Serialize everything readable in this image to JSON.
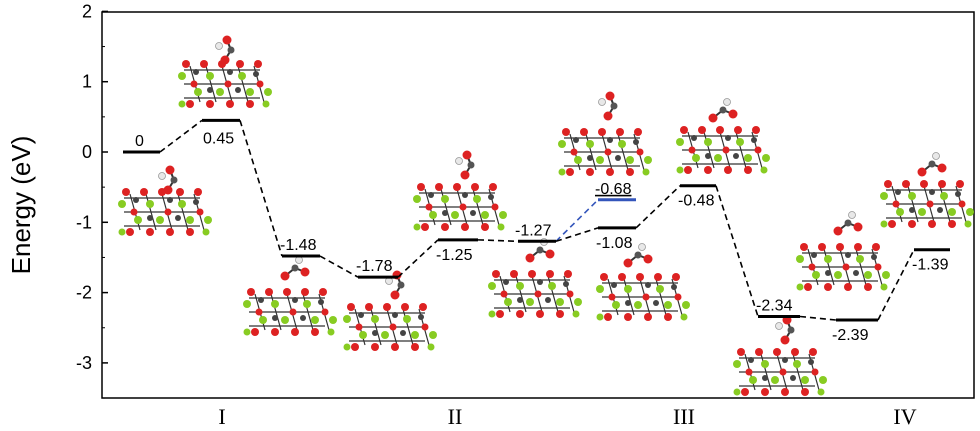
{
  "chart_data": {
    "type": "line",
    "title": "",
    "xlabel": "",
    "ylabel": "Energy (eV)",
    "ylim": [
      -3.55,
      2
    ],
    "yticks": [
      2,
      1,
      0,
      -1,
      -2,
      -3
    ],
    "ytick_labels": [
      "2",
      "1",
      "0",
      "-1",
      "-2",
      "-3"
    ],
    "stage_labels": [
      "I",
      "II",
      "III",
      "IV"
    ],
    "levels": [
      {
        "label": "0",
        "value": 0,
        "color": "#000000"
      },
      {
        "label": "0.45",
        "value": 0.45,
        "color": "#000000"
      },
      {
        "label": "-1.48",
        "value": -1.48,
        "color": "#000000"
      },
      {
        "label": "-1.78",
        "value": -1.78,
        "color": "#000000"
      },
      {
        "label": "-1.25",
        "value": -1.25,
        "color": "#000000"
      },
      {
        "label": "-1.27",
        "value": -1.27,
        "color": "#000000"
      },
      {
        "label": "-0.68",
        "value": -0.68,
        "color": "#3355bb"
      },
      {
        "label": "-1.08",
        "value": -1.08,
        "color": "#000000"
      },
      {
        "label": "-0.48",
        "value": -0.48,
        "color": "#000000"
      },
      {
        "label": "-2.34",
        "value": -2.34,
        "color": "#000000"
      },
      {
        "label": "-2.39",
        "value": -2.39,
        "color": "#000000"
      },
      {
        "label": "-1.39",
        "value": -1.39,
        "color": "#000000"
      }
    ],
    "connections": [
      {
        "from": 0,
        "to": 1,
        "color": "#000000"
      },
      {
        "from": 1,
        "to": 2,
        "color": "#000000"
      },
      {
        "from": 2,
        "to": 3,
        "color": "#000000"
      },
      {
        "from": 3,
        "to": 4,
        "color": "#000000"
      },
      {
        "from": 4,
        "to": 5,
        "color": "#000000"
      },
      {
        "from": 5,
        "to": 6,
        "color": "#3355bb"
      },
      {
        "from": 5,
        "to": 7,
        "color": "#000000"
      },
      {
        "from": 7,
        "to": 8,
        "color": "#000000"
      },
      {
        "from": 8,
        "to": 9,
        "color": "#000000"
      },
      {
        "from": 9,
        "to": 10,
        "color": "#000000"
      },
      {
        "from": 10,
        "to": 11,
        "color": "#000000"
      }
    ]
  },
  "colors": {
    "oxygen": "#dd2222",
    "carbon": "#555555",
    "hydrogen": "#e8e8e8",
    "lattice_metal": "#88cc22",
    "lattice_dark": "#3a3a3a"
  }
}
